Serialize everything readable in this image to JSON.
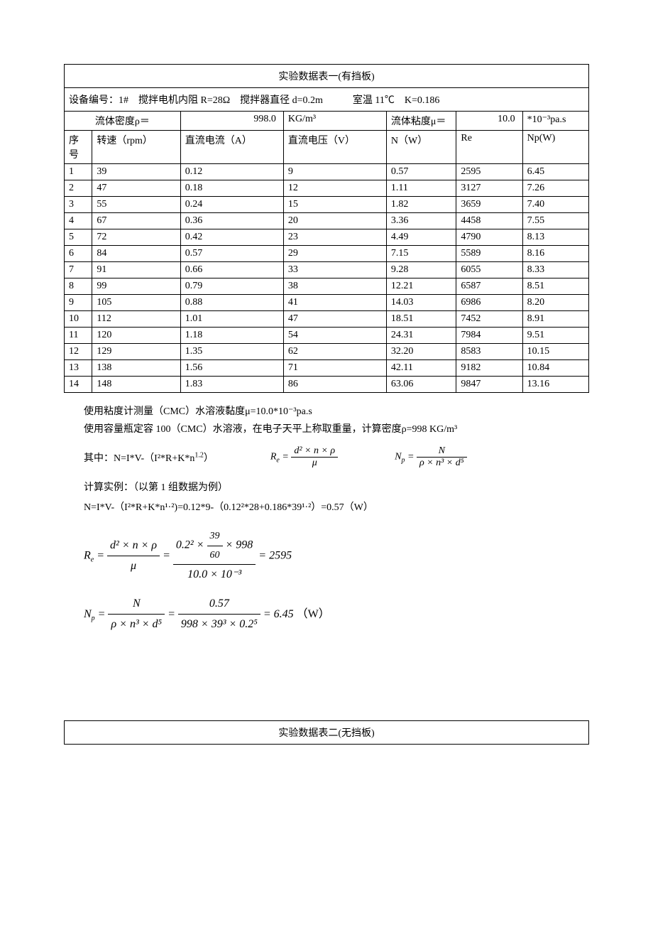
{
  "table1": {
    "title": "实验数据表一(有挡板)",
    "meta": "设备编号：1# 搅拌电机内阻 R=28Ω 搅拌器直径 d=0.2m   室温 11℃ K=0.186",
    "density_label": "流体密度ρ＝",
    "density_val": "998.0",
    "density_unit": "KG/m³",
    "visc_label": "流体粘度μ＝",
    "visc_val": "10.0",
    "visc_unit": "*10⁻³pa.s",
    "headers": [
      "序号",
      "转速（rpm）",
      "直流电流（A）",
      "直流电压（V）",
      "N（W）",
      "Re",
      "Np(W)"
    ],
    "col_widths": [
      "38px",
      "120px",
      "140px",
      "140px",
      "95px",
      "90px",
      "90px"
    ],
    "rows": [
      [
        "1",
        "39",
        "0.12",
        "9",
        "0.57",
        "2595",
        "6.45"
      ],
      [
        "2",
        "47",
        "0.18",
        "12",
        "1.11",
        "3127",
        "7.26"
      ],
      [
        "3",
        "55",
        "0.24",
        "15",
        "1.82",
        "3659",
        "7.40"
      ],
      [
        "4",
        "67",
        "0.36",
        "20",
        "3.36",
        "4458",
        "7.55"
      ],
      [
        "5",
        "72",
        "0.42",
        "23",
        "4.49",
        "4790",
        "8.13"
      ],
      [
        "6",
        "84",
        "0.57",
        "29",
        "7.15",
        "5589",
        "8.16"
      ],
      [
        "7",
        "91",
        "0.66",
        "33",
        "9.28",
        "6055",
        "8.33"
      ],
      [
        "8",
        "99",
        "0.79",
        "38",
        "12.21",
        "6587",
        "8.51"
      ],
      [
        "9",
        "105",
        "0.88",
        "41",
        "14.03",
        "6986",
        "8.20"
      ],
      [
        "10",
        "112",
        "1.01",
        "47",
        "18.51",
        "7452",
        "8.91"
      ],
      [
        "11",
        "120",
        "1.18",
        "54",
        "24.31",
        "7984",
        "9.51"
      ],
      [
        "12",
        "129",
        "1.35",
        "62",
        "32.20",
        "8583",
        "10.15"
      ],
      [
        "13",
        "138",
        "1.56",
        "71",
        "42.11",
        "9182",
        "10.84"
      ],
      [
        "14",
        "148",
        "1.83",
        "86",
        "63.06",
        "9847",
        "13.16"
      ]
    ]
  },
  "notes": {
    "l1": "使用粘度计测量（CMC）水溶液黏度μ=10.0*10⁻³pa.s",
    "l2": "使用容量瓶定容 100（CMC）水溶液，在电子天平上称取重量，计算密度ρ=998 KG/m³",
    "formula_line_a": "其中：N=I*V-（I²*R+K*n",
    "formula_line_a2": "）",
    "re_lhs": "R",
    "re_sub": "e",
    "re_num": "d² × n × ρ",
    "re_den": "μ",
    "np_lhs": "N",
    "np_sub": "p",
    "np_num": "N",
    "np_den": "ρ × n³ × d⁵",
    "calc_title": "计算实例：（以第 1 组数据为例）",
    "calc_n": "N=I*V-（I²*R+K*n¹·²)=0.12*9-（0.12²*28+0.186*39¹·²）=0.57（W）",
    "re_big_num": "0.2² × 39/60 × 998",
    "re_big_num_top": "0.2² ×",
    "re_big_frac_num": "39",
    "re_big_frac_den": "60",
    "re_big_num_tail": "× 998",
    "re_big_den": "10.0 × 10⁻³",
    "re_result": "= 2595",
    "np_big_num": "0.57",
    "np_big_den": "998 × 39³ × 0.2⁵",
    "np_result": "= 6.45",
    "np_unit": "（W）"
  },
  "table2": {
    "title": "实验数据表二(无挡板)"
  }
}
